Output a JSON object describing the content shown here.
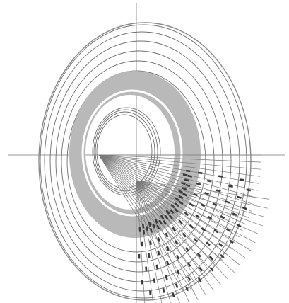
{
  "figure": {
    "kind": "concentric-ellipse-construction",
    "label_text": "",
    "colors": {
      "background": "#ffffff",
      "axis": "#9a9a9a",
      "ring_line": "#6f6f6f",
      "outer_ring": "#8a8a8a",
      "band_fill": "#b9b9b9",
      "ray": "#7a7a7a",
      "mark": "#3a3a3a"
    },
    "ring_count": 13,
    "ray_families": [
      {
        "name": "upper-fan",
        "ray_count": 24
      },
      {
        "name": "lower-fan",
        "ray_count": 22
      }
    ],
    "mark_rows": 9
  }
}
